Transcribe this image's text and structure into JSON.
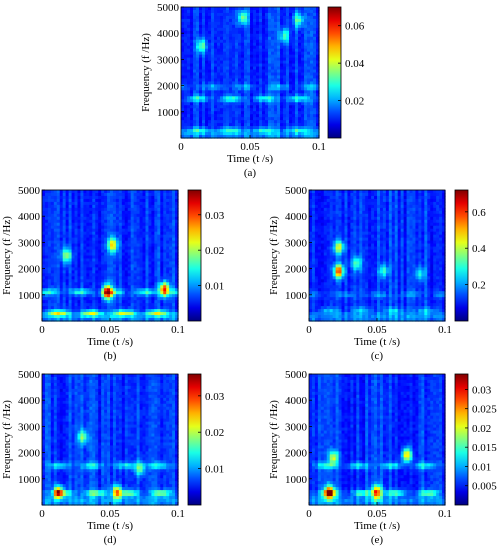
{
  "figure": {
    "panels": [
      {
        "id": "a",
        "caption": "(a)",
        "xlabel": "Time (t /s)",
        "ylabel": "Frequency (f /Hz)",
        "x_ticks": [
          "0",
          "0.05",
          "0.1"
        ],
        "y_ticks": [
          "1000",
          "2000",
          "3000",
          "4000",
          "5000"
        ],
        "colorbar_ticks": [
          "0.02",
          "0.04",
          "0.06"
        ]
      },
      {
        "id": "b",
        "caption": "(b)",
        "xlabel": "Time (t /s)",
        "ylabel": "Frequency (f /Hz)",
        "x_ticks": [
          "0",
          "0.05",
          "0.1"
        ],
        "y_ticks": [
          "1000",
          "2000",
          "3000",
          "4000",
          "5000"
        ],
        "colorbar_ticks": [
          "0.01",
          "0.02",
          "0.03"
        ]
      },
      {
        "id": "c",
        "caption": "(c)",
        "xlabel": "Time (t /s)",
        "ylabel": "Frequency (f /Hz)",
        "x_ticks": [
          "0",
          "0.05",
          "0.1"
        ],
        "y_ticks": [
          "1000",
          "2000",
          "3000",
          "4000",
          "5000"
        ],
        "colorbar_ticks": [
          "0.2",
          "0.4",
          "0.6"
        ]
      },
      {
        "id": "d",
        "caption": "(d)",
        "xlabel": "Time (t /s)",
        "ylabel": "Frequency (f /Hz)",
        "x_ticks": [
          "0",
          "0.05",
          "0.1"
        ],
        "y_ticks": [
          "1000",
          "2000",
          "3000",
          "4000",
          "5000"
        ],
        "colorbar_ticks": [
          "0.01",
          "0.02",
          "0.03"
        ]
      },
      {
        "id": "e",
        "caption": "(e)",
        "xlabel": "Time (t /s)",
        "ylabel": "Frequency (f /Hz)",
        "x_ticks": [
          "0",
          "0.05",
          "0.1"
        ],
        "y_ticks": [
          "1000",
          "2000",
          "3000",
          "4000",
          "5000"
        ],
        "colorbar_ticks": [
          "0.005",
          "0.01",
          "0.015",
          "0.02",
          "0.025",
          "0.03"
        ]
      }
    ]
  },
  "chart_data": [
    {
      "type": "heatmap",
      "panel": "a",
      "colormap": "jet",
      "x_range": [
        0,
        0.1
      ],
      "y_range": [
        0,
        5000
      ],
      "color_range": [
        0,
        0.07
      ],
      "colorbar_ticks": [
        0.02,
        0.04,
        0.06
      ],
      "features": [
        {
          "kind": "band",
          "f": 1500,
          "amp": 0.022
        },
        {
          "kind": "band",
          "f": 1950,
          "amp": 0.012
        },
        {
          "kind": "band",
          "f": 300,
          "amp": 0.016
        },
        {
          "kind": "spot",
          "t": 0.015,
          "f": 3500,
          "amp": 0.022
        },
        {
          "kind": "spot",
          "t": 0.045,
          "f": 4600,
          "amp": 0.024
        },
        {
          "kind": "spot",
          "t": 0.075,
          "f": 3900,
          "amp": 0.02
        },
        {
          "kind": "spot",
          "t": 0.085,
          "f": 4500,
          "amp": 0.022
        }
      ]
    },
    {
      "type": "heatmap",
      "panel": "b",
      "colormap": "jet",
      "x_range": [
        0,
        0.1
      ],
      "y_range": [
        0,
        5000
      ],
      "color_range": [
        0,
        0.037
      ],
      "colorbar_ticks": [
        0.01,
        0.02,
        0.03
      ],
      "features": [
        {
          "kind": "band",
          "f": 1100,
          "amp": 0.012
        },
        {
          "kind": "band",
          "f": 300,
          "amp": 0.018
        },
        {
          "kind": "spot",
          "t": 0.048,
          "f": 1100,
          "amp": 0.028
        },
        {
          "kind": "spot",
          "t": 0.09,
          "f": 1200,
          "amp": 0.026
        },
        {
          "kind": "spot",
          "t": 0.052,
          "f": 2900,
          "amp": 0.018
        },
        {
          "kind": "spot",
          "t": 0.018,
          "f": 2500,
          "amp": 0.014
        }
      ]
    },
    {
      "type": "heatmap",
      "panel": "c",
      "colormap": "jet",
      "x_range": [
        0,
        0.1
      ],
      "y_range": [
        0,
        5000
      ],
      "color_range": [
        0,
        0.72
      ],
      "colorbar_ticks": [
        0.2,
        0.4,
        0.6
      ],
      "features": [
        {
          "kind": "band",
          "f": 1000,
          "amp": 0.1
        },
        {
          "kind": "band",
          "f": 400,
          "amp": 0.14
        },
        {
          "kind": "spot",
          "t": 0.022,
          "f": 1900,
          "amp": 0.48
        },
        {
          "kind": "spot",
          "t": 0.022,
          "f": 2800,
          "amp": 0.32
        },
        {
          "kind": "spot",
          "t": 0.035,
          "f": 2200,
          "amp": 0.2
        },
        {
          "kind": "spot",
          "t": 0.055,
          "f": 1900,
          "amp": 0.18
        },
        {
          "kind": "spot",
          "t": 0.082,
          "f": 1800,
          "amp": 0.16
        }
      ]
    },
    {
      "type": "heatmap",
      "panel": "d",
      "colormap": "jet",
      "x_range": [
        0,
        0.1
      ],
      "y_range": [
        0,
        5000
      ],
      "color_range": [
        0,
        0.036
      ],
      "colorbar_ticks": [
        0.01,
        0.02,
        0.03
      ],
      "features": [
        {
          "kind": "band",
          "f": 450,
          "amp": 0.016
        },
        {
          "kind": "band",
          "f": 1500,
          "amp": 0.01
        },
        {
          "kind": "spot",
          "t": 0.012,
          "f": 480,
          "amp": 0.022
        },
        {
          "kind": "spot",
          "t": 0.055,
          "f": 480,
          "amp": 0.02
        },
        {
          "kind": "spot",
          "t": 0.03,
          "f": 2600,
          "amp": 0.012
        },
        {
          "kind": "spot",
          "t": 0.072,
          "f": 1400,
          "amp": 0.012
        }
      ]
    },
    {
      "type": "heatmap",
      "panel": "e",
      "colormap": "jet",
      "x_range": [
        0,
        0.1
      ],
      "y_range": [
        0,
        5000
      ],
      "color_range": [
        0,
        0.034
      ],
      "colorbar_ticks": [
        0.005,
        0.01,
        0.015,
        0.02,
        0.025,
        0.03
      ],
      "features": [
        {
          "kind": "band",
          "f": 450,
          "amp": 0.014
        },
        {
          "kind": "band",
          "f": 1500,
          "amp": 0.01
        },
        {
          "kind": "spot",
          "t": 0.015,
          "f": 480,
          "amp": 0.024
        },
        {
          "kind": "spot",
          "t": 0.05,
          "f": 480,
          "amp": 0.022
        },
        {
          "kind": "spot",
          "t": 0.072,
          "f": 1900,
          "amp": 0.018
        },
        {
          "kind": "spot",
          "t": 0.018,
          "f": 1800,
          "amp": 0.014
        }
      ]
    }
  ]
}
